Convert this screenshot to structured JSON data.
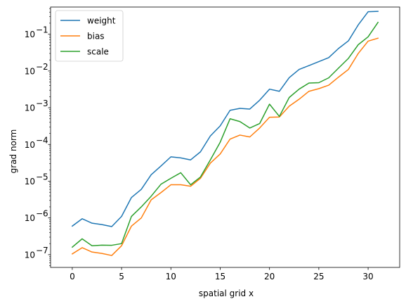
{
  "chart_data": {
    "type": "line",
    "xlabel": "spatial grid x",
    "ylabel": "grad norm",
    "xlim": [
      -2.2,
      33.2
    ],
    "ylim": [
      4.5e-08,
      0.55
    ],
    "yscale": "log",
    "grid": false,
    "legend_position": "top-left",
    "x_ticks": [
      0,
      5,
      10,
      15,
      20,
      25,
      30
    ],
    "x_tick_labels": [
      "0",
      "5",
      "10",
      "15",
      "20",
      "25",
      "30"
    ],
    "y_ticks": [
      1e-07,
      1e-06,
      1e-05,
      0.0001,
      0.001,
      0.01,
      0.1
    ],
    "y_tick_labels": [
      "10",
      "10",
      "10",
      "10",
      "10",
      "10",
      "10"
    ],
    "y_tick_exponents": [
      "−7",
      "−6",
      "−5",
      "−4",
      "−3",
      "−2",
      "−1"
    ],
    "x": [
      0,
      1,
      2,
      3,
      4,
      5,
      6,
      7,
      8,
      9,
      10,
      11,
      12,
      13,
      14,
      15,
      16,
      17,
      18,
      19,
      20,
      21,
      22,
      23,
      24,
      25,
      26,
      27,
      28,
      29,
      30,
      31
    ],
    "series": [
      {
        "name": "weight",
        "color": "#1f77b4",
        "values": [
          6e-07,
          9.5e-07,
          7.2e-07,
          6.6e-07,
          5.8e-07,
          1.1e-06,
          3.6e-06,
          6e-06,
          1.5e-05,
          2.6e-05,
          4.6e-05,
          4.3e-05,
          3.8e-05,
          6.3e-05,
          0.00017,
          0.00032,
          0.00085,
          0.00096,
          0.00092,
          0.0016,
          0.0032,
          0.0028,
          0.0066,
          0.011,
          0.014,
          0.018,
          0.023,
          0.041,
          0.066,
          0.18,
          0.41,
          0.42
        ]
      },
      {
        "name": "bias",
        "color": "#ff7f0e",
        "values": [
          1.05e-07,
          1.55e-07,
          1.18e-07,
          1.08e-07,
          9.5e-08,
          1.75e-07,
          6e-07,
          1e-06,
          3.1e-06,
          4.9e-06,
          8e-06,
          8e-06,
          7.3e-06,
          1.2e-05,
          3.1e-05,
          5.5e-05,
          0.00014,
          0.00018,
          0.00016,
          0.00028,
          0.00055,
          0.00056,
          0.0011,
          0.0017,
          0.0028,
          0.0033,
          0.0041,
          0.0068,
          0.011,
          0.03,
          0.065,
          0.078
        ]
      },
      {
        "name": "scale",
        "color": "#2ca02c",
        "values": [
          1.6e-07,
          2.7e-07,
          1.75e-07,
          1.82e-07,
          1.8e-07,
          2e-07,
          1.1e-06,
          2e-06,
          3.9e-06,
          8.3e-06,
          1.2e-05,
          1.7e-05,
          8e-06,
          1.3e-05,
          3.8e-05,
          0.000115,
          0.0005,
          0.00042,
          0.00028,
          0.00037,
          0.00125,
          0.00058,
          0.0019,
          0.0032,
          0.0047,
          0.0048,
          0.0065,
          0.012,
          0.022,
          0.052,
          0.085,
          0.21
        ]
      }
    ]
  }
}
